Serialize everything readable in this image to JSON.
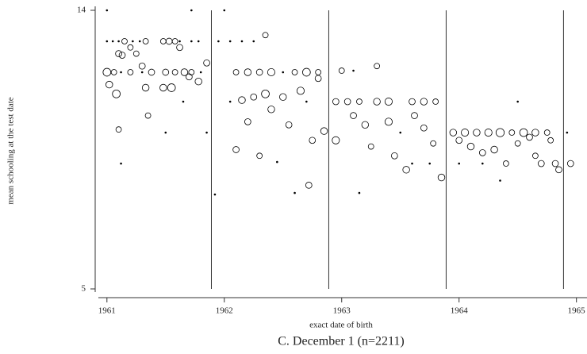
{
  "chart_data": {
    "type": "scatter",
    "x_label": "exact date of birth",
    "y_label": "mean schooling at the test date",
    "caption": "C.  December 1 (n=2211)",
    "xlim": [
      1960.9,
      1965.09
    ],
    "ylim": [
      5,
      14
    ],
    "xticks": [
      1961,
      1962,
      1963,
      1964,
      1965
    ],
    "yticks": [
      5,
      14
    ],
    "vlines": [
      1961.89,
      1962.89,
      1963.89,
      1964.89
    ],
    "series": [
      {
        "color": "#000000",
        "x": [
          1961.0,
          1961.05,
          1961.1,
          1961.15,
          1961.22,
          1961.28,
          1961.33,
          1961.48,
          1961.53,
          1961.58,
          1961.62,
          1961.72,
          1961.78,
          1961.0,
          1961.06,
          1961.12,
          1961.2,
          1961.3,
          1961.38,
          1961.5,
          1961.58,
          1961.66,
          1961.72,
          1961.8,
          1961.02,
          1961.08,
          1961.1,
          1961.13,
          1961.2,
          1961.25,
          1961.3,
          1961.33,
          1961.35,
          1961.48,
          1961.55,
          1961.62,
          1961.7,
          1961.78,
          1961.85,
          1961.12,
          1961.1,
          1961.65,
          1961.5,
          1961.85,
          1961.0,
          1961.72,
          1962.0,
          1961.95,
          1962.05,
          1962.15,
          1962.25,
          1962.2,
          1962.1,
          1962.3,
          1962.4,
          1962.5,
          1962.6,
          1962.7,
          1962.8,
          1962.15,
          1962.25,
          1962.35,
          1962.2,
          1962.3,
          1962.1,
          1962.4,
          1962.5,
          1962.55,
          1962.65,
          1962.75,
          1962.8,
          1962.72,
          1962.6,
          1962.45,
          1962.05,
          1962.7,
          1962.85,
          1961.92,
          1962.35,
          1962.95,
          1963.05,
          1963.15,
          1963.3,
          1963.4,
          1963.6,
          1963.7,
          1963.8,
          1962.95,
          1963.1,
          1963.2,
          1963.25,
          1963.4,
          1963.45,
          1963.55,
          1963.62,
          1963.7,
          1963.78,
          1963.85,
          1963.0,
          1963.1,
          1963.3,
          1963.5,
          1963.75,
          1963.6,
          1963.15,
          1963.95,
          1964.05,
          1964.15,
          1964.25,
          1964.35,
          1964.45,
          1964.55,
          1964.65,
          1964.75,
          1964.0,
          1964.1,
          1964.2,
          1964.3,
          1964.4,
          1964.5,
          1964.6,
          1964.65,
          1964.78,
          1964.82,
          1964.85,
          1964.5,
          1964.35,
          1964.0,
          1964.2,
          1964.7,
          1964.95,
          1964.92
        ],
        "values": [
          13,
          13,
          13,
          13,
          13,
          13,
          13,
          13,
          13,
          13,
          13,
          13,
          13,
          12,
          12,
          12,
          12,
          12,
          12,
          12,
          12,
          12,
          12,
          12,
          11.6,
          11.3,
          12.6,
          12.55,
          12.8,
          12.6,
          12.2,
          11.5,
          10.6,
          11.5,
          11.5,
          12.8,
          11.85,
          11.7,
          12.3,
          9.05,
          10.15,
          11.05,
          10.05,
          10.05,
          14,
          14,
          14,
          13,
          13,
          13,
          13,
          12,
          12,
          12,
          12,
          12,
          12,
          12,
          12,
          11.1,
          11.2,
          11.3,
          10.4,
          9.3,
          9.5,
          10.8,
          11.2,
          10.3,
          11.4,
          9.8,
          11.8,
          8.35,
          8.1,
          9.1,
          11.05,
          11.05,
          10.1,
          8.05,
          13.2,
          11.05,
          11.05,
          11.05,
          11.05,
          11.05,
          11.05,
          11.05,
          11.05,
          9.8,
          10.6,
          10.3,
          9.6,
          10.4,
          9.3,
          8.85,
          10.6,
          10.2,
          9.7,
          8.6,
          12.05,
          12.05,
          12.2,
          10.05,
          9.05,
          9.05,
          8.1,
          10.05,
          10.05,
          10.05,
          10.05,
          10.05,
          10.05,
          10.05,
          10.05,
          10.05,
          9.8,
          9.6,
          9.4,
          9.5,
          9.05,
          9.7,
          9.9,
          9.3,
          9.8,
          9.05,
          8.85,
          11.05,
          8.5,
          9.05,
          9.05,
          9.05,
          9.05,
          10.05
        ],
        "sizes": [
          1,
          1,
          1,
          2,
          1,
          1,
          2,
          2,
          3,
          2,
          1,
          1,
          1,
          6,
          2,
          1,
          2,
          1,
          3,
          3,
          2,
          4,
          2,
          1,
          4,
          6,
          3,
          3,
          2,
          2,
          3,
          4,
          2,
          4,
          6,
          3,
          3,
          4,
          3,
          1,
          2,
          1,
          1,
          1,
          1,
          1,
          1,
          1,
          1,
          1,
          1,
          4,
          2,
          3,
          5,
          1,
          2,
          6,
          2,
          4,
          3,
          6,
          3,
          2,
          3,
          4,
          4,
          3,
          5,
          3,
          3,
          3,
          1,
          1,
          1,
          1,
          4,
          1,
          2,
          3,
          3,
          2,
          4,
          5,
          3,
          4,
          2,
          5,
          3,
          4,
          2,
          5,
          3,
          4,
          3,
          3,
          2,
          4,
          2,
          1,
          2,
          1,
          1,
          1,
          1,
          4,
          5,
          4,
          5,
          7,
          2,
          6,
          4,
          2,
          3,
          4,
          3,
          4,
          2,
          2,
          3,
          2,
          2,
          3,
          3,
          1,
          1,
          1,
          1,
          3,
          3,
          1
        ]
      }
    ]
  }
}
